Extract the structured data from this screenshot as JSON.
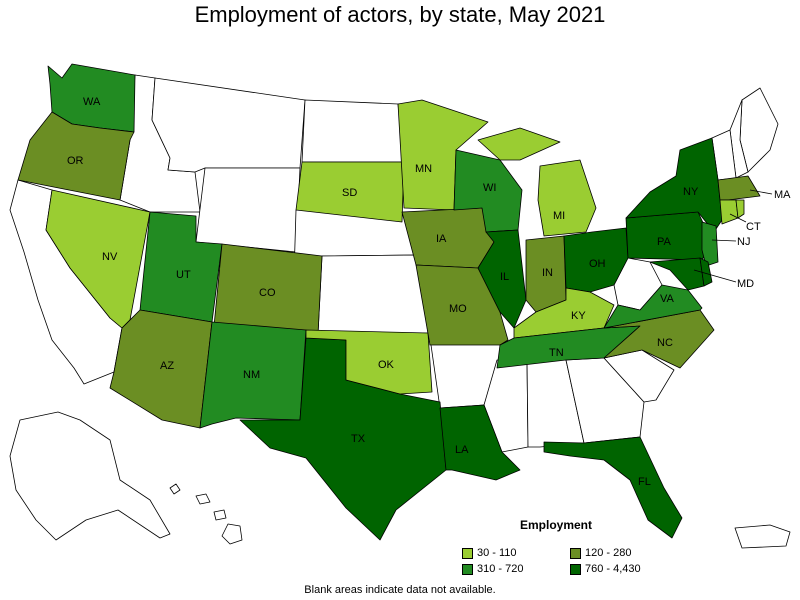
{
  "title": "Employment of actors, by state, May 2021",
  "footnote": "Blank areas indicate data not available.",
  "legend": {
    "title": "Employment",
    "items": [
      {
        "label": "30 - 110",
        "color": "#9acd32"
      },
      {
        "label": "120 - 280",
        "color": "#6b8e23"
      },
      {
        "label": "310 - 720",
        "color": "#228b22"
      },
      {
        "label": "760 - 4,430",
        "color": "#006400"
      }
    ]
  },
  "colors": {
    "blank": "#ffffff",
    "bin1": "#9acd32",
    "bin2": "#6b8e23",
    "bin3": "#228b22",
    "bin4": "#006400"
  },
  "states": {
    "WA": {
      "label": "WA",
      "bin": "310 - 720"
    },
    "OR": {
      "label": "OR",
      "bin": "120 - 280"
    },
    "NV": {
      "label": "NV",
      "bin": "30 - 110"
    },
    "UT": {
      "label": "UT",
      "bin": "310 - 720"
    },
    "CO": {
      "label": "CO",
      "bin": "120 - 280"
    },
    "AZ": {
      "label": "AZ",
      "bin": "120 - 280"
    },
    "NM": {
      "label": "NM",
      "bin": "310 - 720"
    },
    "TX": {
      "label": "TX",
      "bin": "760 - 4,430"
    },
    "OK": {
      "label": "OK",
      "bin": "30 - 110"
    },
    "SD": {
      "label": "SD",
      "bin": "30 - 110"
    },
    "MN": {
      "label": "MN",
      "bin": "30 - 110"
    },
    "IA": {
      "label": "IA",
      "bin": "120 - 280"
    },
    "MO": {
      "label": "MO",
      "bin": "120 - 280"
    },
    "LA": {
      "label": "LA",
      "bin": "760 - 4,430"
    },
    "WI": {
      "label": "WI",
      "bin": "310 - 720"
    },
    "IL": {
      "label": "IL",
      "bin": "760 - 4,430"
    },
    "MI": {
      "label": "MI",
      "bin": "30 - 110"
    },
    "IN": {
      "label": "IN",
      "bin": "120 - 280"
    },
    "OH": {
      "label": "OH",
      "bin": "760 - 4,430"
    },
    "KY": {
      "label": "KY",
      "bin": "30 - 110"
    },
    "TN": {
      "label": "TN",
      "bin": "310 - 720"
    },
    "FL": {
      "label": "FL",
      "bin": "760 - 4,430"
    },
    "NC": {
      "label": "NC",
      "bin": "120 - 280"
    },
    "VA": {
      "label": "VA",
      "bin": "310 - 720"
    },
    "PA": {
      "label": "PA",
      "bin": "760 - 4,430"
    },
    "NY": {
      "label": "NY",
      "bin": "760 - 4,430"
    },
    "NJ": {
      "label": "NJ",
      "bin": "310 - 720"
    },
    "MD": {
      "label": "MD",
      "bin": "760 - 4,430"
    },
    "MA": {
      "label": "MA",
      "bin": "120 - 280"
    },
    "CT": {
      "label": "CT",
      "bin": "30 - 110"
    },
    "DE": {
      "label": "",
      "bin": "760 - 4,430"
    },
    "RI": {
      "label": "",
      "bin": "30 - 110"
    }
  }
}
